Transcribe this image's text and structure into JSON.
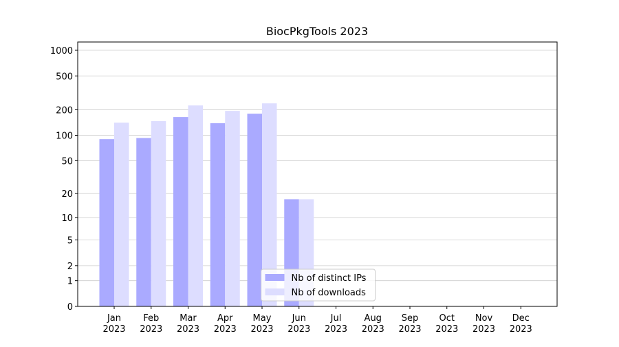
{
  "chart_data": {
    "type": "bar",
    "title": "BiocPkgTools 2023",
    "categories": [
      "Jan 2023",
      "Feb 2023",
      "Mar 2023",
      "Apr 2023",
      "May 2023",
      "Jun 2023",
      "Jul 2023",
      "Aug 2023",
      "Sep 2023",
      "Oct 2023",
      "Nov 2023",
      "Dec 2023"
    ],
    "series": [
      {
        "name": "Nb of distinct IPs",
        "color": "#aaaaff",
        "values": [
          90,
          93,
          164,
          139,
          180,
          17,
          0,
          0,
          0,
          0,
          0,
          0
        ]
      },
      {
        "name": "Nb of downloads",
        "color": "#ddddff",
        "values": [
          141,
          147,
          225,
          194,
          238,
          17,
          0,
          0,
          0,
          0,
          0,
          0
        ]
      }
    ],
    "y_scale": "log1p",
    "ylim": [
      0,
      1250
    ],
    "yticks": [
      0,
      1,
      2,
      5,
      10,
      20,
      50,
      100,
      200,
      500,
      1000
    ],
    "grid": true,
    "legend": "lower center"
  }
}
